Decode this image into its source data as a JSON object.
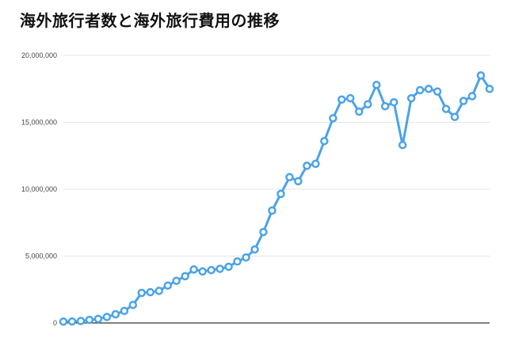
{
  "title": "海外旅行者数と海外旅行費用の推移",
  "colors": {
    "line": "#4aa3e8",
    "grid": "#e6e6e6",
    "axis": "#000000"
  },
  "chart_data": {
    "type": "line",
    "title": "海外旅行者数と海外旅行費用の推移",
    "xlabel": "",
    "ylabel": "",
    "ylim": [
      0,
      20000000
    ],
    "yticks": [
      {
        "value": 0,
        "label": "0"
      },
      {
        "value": 5000000,
        "label": "5,000,000"
      },
      {
        "value": 10000000,
        "label": "10,000,000"
      },
      {
        "value": 15000000,
        "label": "15,000,000"
      },
      {
        "value": 20000000,
        "label": "20,000,000"
      }
    ],
    "grid": true,
    "series": [
      {
        "values": [
          100000,
          110000,
          150000,
          230000,
          300000,
          450000,
          650000,
          900000,
          1350000,
          2250000,
          2300000,
          2400000,
          2800000,
          3150000,
          3500000,
          4000000,
          3850000,
          3950000,
          4050000,
          4200000,
          4600000,
          4900000,
          5500000,
          6800000,
          8400000,
          9650000,
          10900000,
          10600000,
          11750000,
          11900000,
          13600000,
          15300000,
          16700000,
          16800000,
          15800000,
          16350000,
          17800000,
          16200000,
          16500000,
          13300000,
          16800000,
          17400000,
          17500000,
          17300000,
          16000000,
          15400000,
          16600000,
          16950000,
          18500000,
          17500000
        ]
      }
    ]
  }
}
